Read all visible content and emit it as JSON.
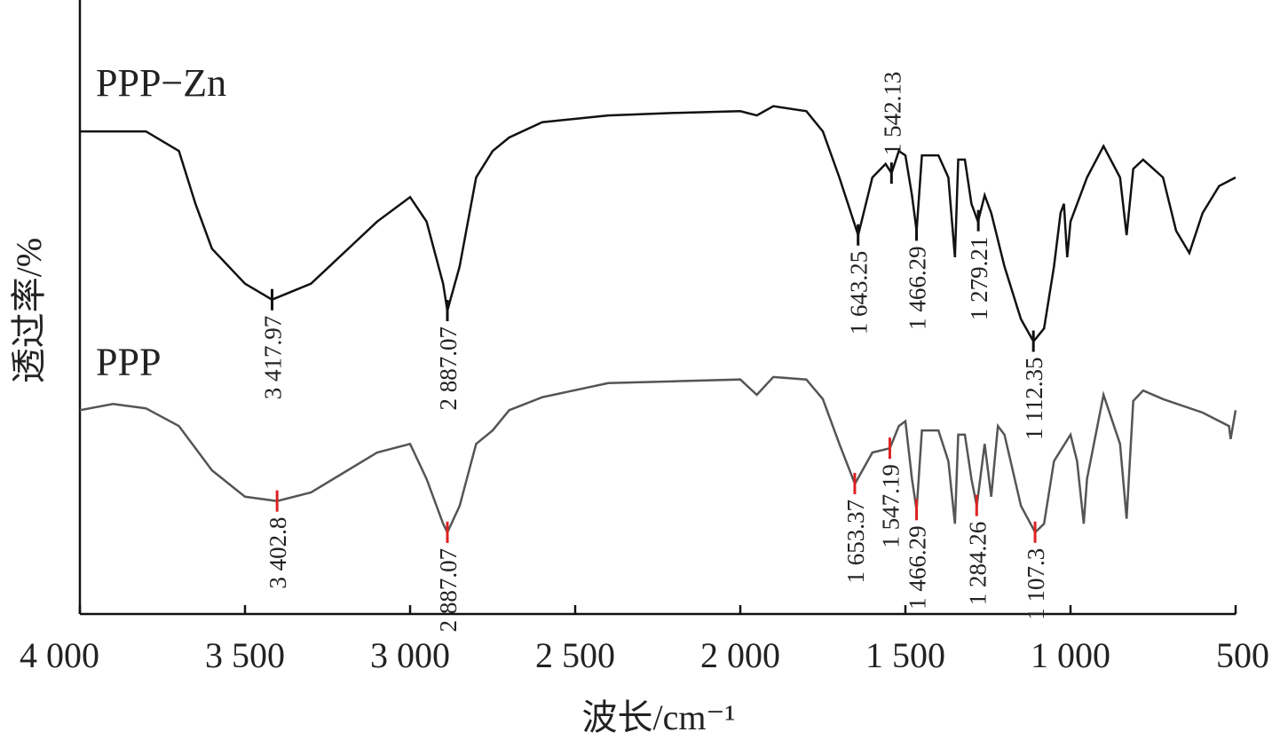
{
  "chart_data": {
    "type": "line",
    "xlabel": "波长/cm⁻¹",
    "ylabel": "透过率/%",
    "xlim": [
      4000,
      500
    ],
    "ylim": [
      0,
      100
    ],
    "xticks": [
      {
        "value": 4000,
        "label": "4 000"
      },
      {
        "value": 3500,
        "label": "3 500"
      },
      {
        "value": 3000,
        "label": "3 000"
      },
      {
        "value": 2500,
        "label": "2 500"
      },
      {
        "value": 2000,
        "label": "2 000"
      },
      {
        "value": 1500,
        "label": "1 500"
      },
      {
        "value": 1000,
        "label": "1 000"
      },
      500
    ],
    "series": [
      {
        "name": "PPP−Zn",
        "color": "#111111",
        "peak_color": "#111111",
        "x": [
          4000,
          3800,
          3700,
          3650,
          3600,
          3500,
          3418,
          3300,
          3100,
          3000,
          2950,
          2900,
          2887,
          2850,
          2800,
          2750,
          2700,
          2600,
          2400,
          2200,
          2000,
          1950,
          1900,
          1800,
          1750,
          1700,
          1643,
          1600,
          1560,
          1542,
          1520,
          1500,
          1480,
          1466,
          1450,
          1400,
          1370,
          1350,
          1340,
          1320,
          1300,
          1280,
          1260,
          1240,
          1200,
          1150,
          1112,
          1080,
          1050,
          1030,
          1020,
          1010,
          1000,
          950,
          900,
          850,
          830,
          810,
          780,
          720,
          680,
          640,
          600,
          550,
          500
        ],
        "values": [
          78.6,
          78.6,
          75.4,
          66.8,
          59.5,
          53.8,
          51.2,
          53.8,
          63.9,
          67.9,
          63.9,
          53.8,
          49.4,
          56.6,
          71.1,
          75.4,
          77.6,
          80.1,
          81.2,
          81.6,
          81.9,
          81.2,
          82.7,
          81.9,
          78.6,
          71.1,
          61.7,
          71.1,
          73.3,
          71.8,
          75.4,
          74.7,
          68.2,
          62.4,
          74.7,
          74.7,
          71.1,
          58.1,
          74.0,
          74.0,
          66.8,
          63.9,
          68.2,
          65.3,
          56.6,
          48.0,
          44.4,
          46.5,
          56.6,
          65.3,
          66.8,
          58.1,
          63.9,
          71.1,
          76.2,
          71.1,
          61.7,
          72.5,
          74.0,
          71.1,
          62.4,
          58.8,
          65.3,
          69.7,
          71.1
        ],
        "peaks": [
          {
            "label": "3 417.97",
            "x": 3417.97
          },
          {
            "label": "2 887.07",
            "x": 2887.07
          },
          {
            "label": "1 643.25",
            "x": 1643.25
          },
          {
            "label": "1 542.13",
            "x": 1542.13
          },
          {
            "label": "1 466.29",
            "x": 1466.29
          },
          {
            "label": "1 279.21",
            "x": 1279.21
          },
          {
            "label": "1 112.35",
            "x": 1112.35
          }
        ]
      },
      {
        "name": "PPP",
        "color": "#555555",
        "peak_color": "#dd2222",
        "x": [
          4000,
          3900,
          3800,
          3700,
          3600,
          3500,
          3403,
          3300,
          3100,
          3000,
          2950,
          2900,
          2887,
          2850,
          2800,
          2750,
          2700,
          2600,
          2400,
          2200,
          2000,
          1950,
          1900,
          1800,
          1750,
          1700,
          1653,
          1600,
          1547,
          1520,
          1500,
          1480,
          1466,
          1450,
          1400,
          1370,
          1350,
          1340,
          1320,
          1300,
          1284,
          1260,
          1240,
          1220,
          1200,
          1150,
          1107,
          1080,
          1050,
          1000,
          980,
          960,
          950,
          900,
          850,
          830,
          810,
          780,
          720,
          600,
          520,
          515,
          500
        ],
        "values": [
          33.2,
          34.2,
          33.5,
          30.6,
          23.4,
          19.1,
          18.4,
          19.8,
          26.3,
          27.7,
          22.0,
          14.7,
          13.3,
          17.6,
          27.7,
          29.9,
          33.2,
          35.3,
          37.6,
          37.9,
          38.2,
          35.7,
          38.6,
          38.2,
          35.0,
          27.7,
          21.2,
          26.3,
          27.0,
          30.6,
          31.4,
          22.0,
          16.9,
          29.9,
          29.9,
          24.9,
          14.7,
          29.2,
          29.2,
          22.0,
          17.6,
          27.7,
          19.1,
          30.6,
          29.2,
          17.6,
          13.3,
          14.7,
          24.9,
          29.2,
          24.9,
          14.7,
          22.0,
          35.7,
          27.7,
          15.5,
          34.7,
          36.4,
          35.0,
          32.8,
          30.6,
          28.5,
          33.2
        ],
        "peaks": [
          {
            "label": "3 402.8",
            "x": 3402.8
          },
          {
            "label": "2 887.07",
            "x": 2887.07
          },
          {
            "label": "1 653.37",
            "x": 1653.37
          },
          {
            "label": "1 547.19",
            "x": 1547.19
          },
          {
            "label": "1 466.29",
            "x": 1466.29
          },
          {
            "label": "1 284.26",
            "x": 1284.26
          },
          {
            "label": "1 107.3",
            "x": 1107.3
          }
        ]
      }
    ]
  }
}
